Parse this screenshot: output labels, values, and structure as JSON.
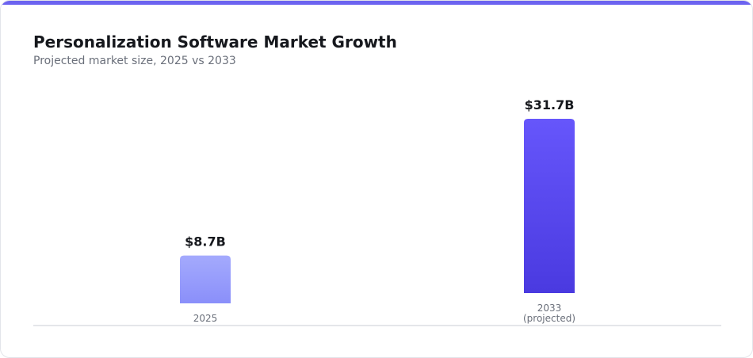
{
  "colors": {
    "accent": "#6c63f0",
    "bar_2025_top": "#a4aafd",
    "bar_2025_bottom": "#8a8ffa",
    "bar_2033_top": "#6656fb",
    "bar_2033_bottom": "#4a3ae0",
    "baseline": "#dcdee3"
  },
  "header": {
    "title": "Personalization Software Market Growth",
    "subtitle": "Projected market size, 2025 vs 2033"
  },
  "chart_data": {
    "type": "bar",
    "title": "Personalization Software Market Growth",
    "subtitle": "Projected market size, 2025 vs 2033",
    "categories": [
      [
        "2025"
      ],
      [
        "2033",
        "(projected)"
      ]
    ],
    "values": [
      8.7,
      31.7
    ],
    "value_labels": [
      "$8.7B",
      "$31.7B"
    ],
    "unit": "B USD",
    "grid": false,
    "legend": "none"
  }
}
